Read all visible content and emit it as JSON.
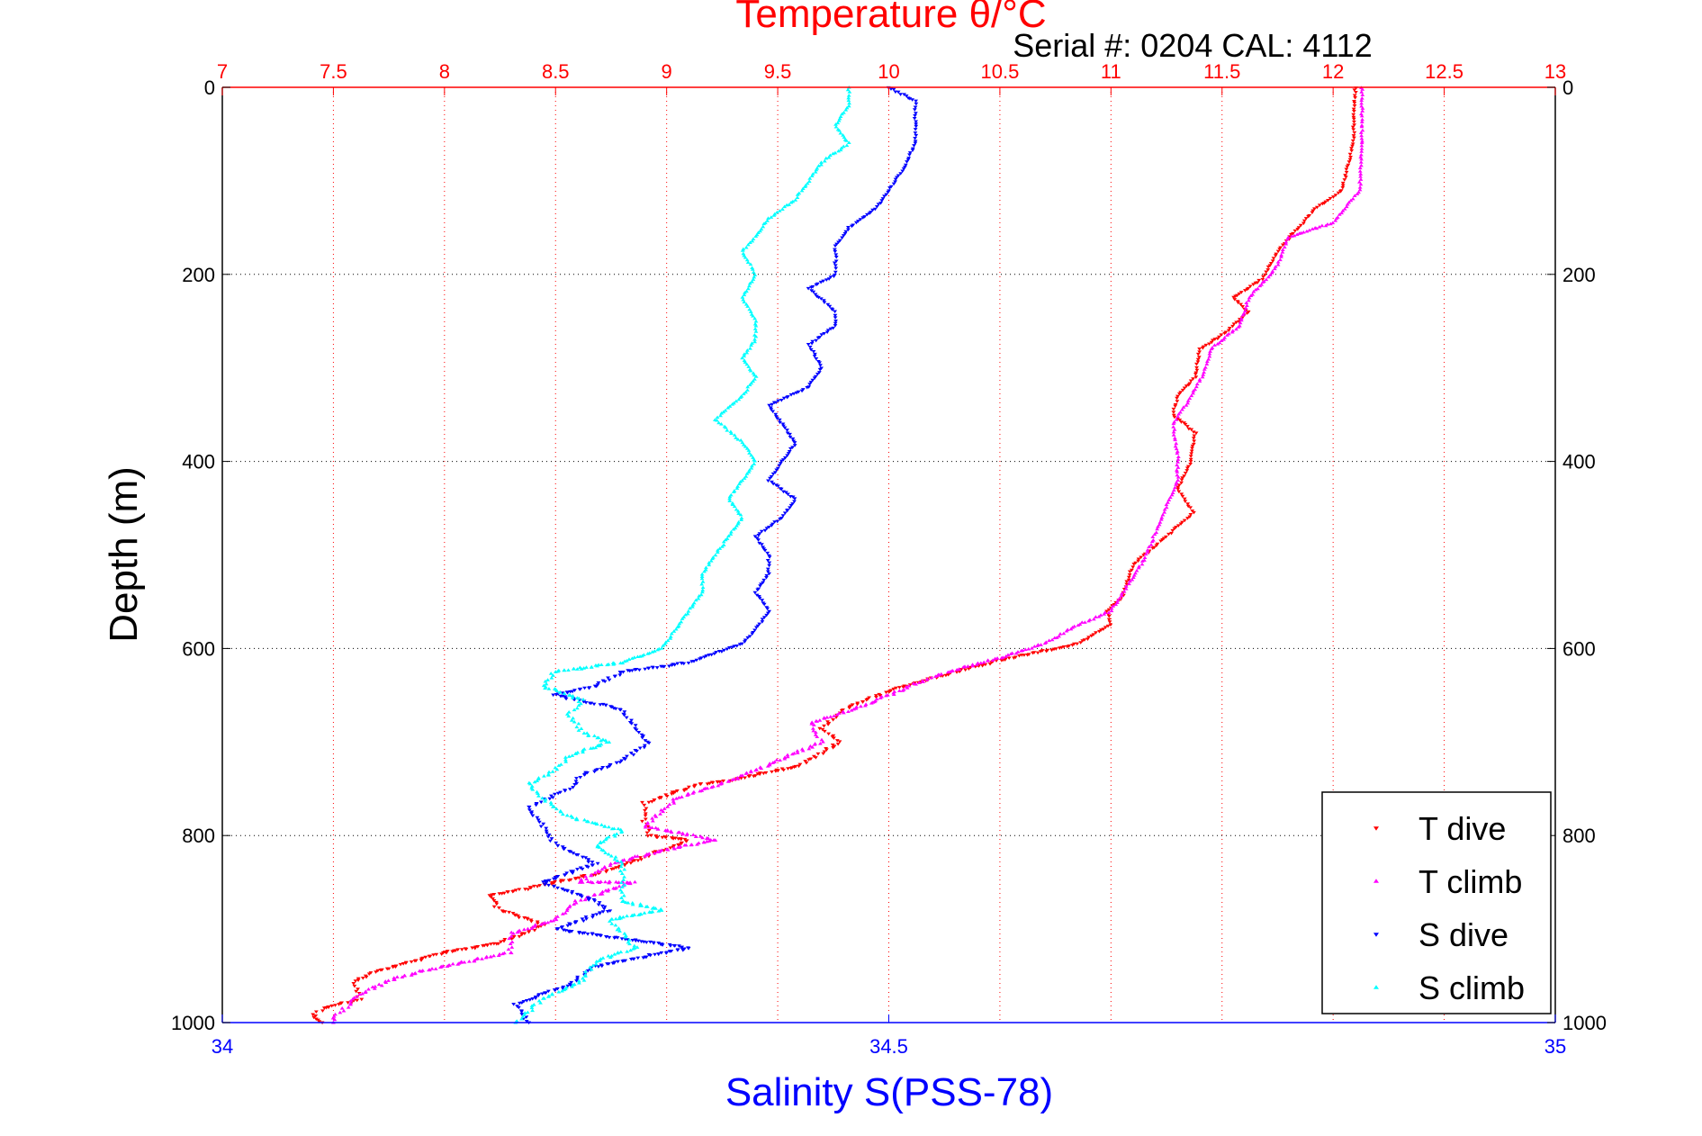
{
  "chart_data": {
    "type": "scatter",
    "title": "Temperature θ/°C",
    "subtitle": "Serial #: 0204  CAL: 4112",
    "xlabel_top": "Temperature θ/°C",
    "xlabel_bottom": "Salinity S(PSS-78)",
    "ylabel": "Depth (m)",
    "x_top": {
      "range": [
        7,
        13
      ],
      "ticks": [
        "7",
        "7.5",
        "8",
        "8.5",
        "9",
        "9.5",
        "10",
        "10.5",
        "11",
        "11.5",
        "12",
        "12.5",
        "13"
      ]
    },
    "x_bottom": {
      "range": [
        34,
        35
      ],
      "ticks": [
        "34",
        "34.5",
        "35"
      ]
    },
    "y": {
      "range": [
        0,
        1000
      ],
      "inverted": true,
      "ticks": [
        "0",
        "200",
        "400",
        "600",
        "800",
        "1000"
      ]
    },
    "grid": true,
    "legend_position": "bottom-right",
    "colors": {
      "T dive": "#ff0000",
      "T climb": "#ff00ff",
      "S dive": "#0000ff",
      "S climb": "#00ffff"
    },
    "series": [
      {
        "name": "T dive",
        "axis": "temperature",
        "marker": "triangle-down",
        "points": [
          [
            12.1,
            0
          ],
          [
            12.09,
            60
          ],
          [
            12.04,
            110
          ],
          [
            11.92,
            130
          ],
          [
            11.75,
            175
          ],
          [
            11.68,
            205
          ],
          [
            11.55,
            225
          ],
          [
            11.62,
            240
          ],
          [
            11.5,
            265
          ],
          [
            11.4,
            280
          ],
          [
            11.38,
            310
          ],
          [
            11.3,
            330
          ],
          [
            11.28,
            350
          ],
          [
            11.38,
            370
          ],
          [
            11.36,
            400
          ],
          [
            11.3,
            430
          ],
          [
            11.37,
            455
          ],
          [
            11.25,
            480
          ],
          [
            11.1,
            510
          ],
          [
            11.05,
            545
          ],
          [
            10.98,
            560
          ],
          [
            11.0,
            575
          ],
          [
            10.85,
            595
          ],
          [
            10.55,
            610
          ],
          [
            10.3,
            625
          ],
          [
            10.0,
            645
          ],
          [
            9.8,
            665
          ],
          [
            9.7,
            685
          ],
          [
            9.78,
            700
          ],
          [
            9.6,
            725
          ],
          [
            9.3,
            740
          ],
          [
            9.15,
            745
          ],
          [
            8.9,
            765
          ],
          [
            8.9,
            785
          ],
          [
            8.92,
            800
          ],
          [
            9.1,
            805
          ],
          [
            8.88,
            825
          ],
          [
            8.7,
            840
          ],
          [
            8.4,
            855
          ],
          [
            8.2,
            865
          ],
          [
            8.25,
            880
          ],
          [
            8.45,
            895
          ],
          [
            8.25,
            915
          ],
          [
            8.0,
            925
          ],
          [
            7.7,
            945
          ],
          [
            7.6,
            955
          ],
          [
            7.62,
            975
          ],
          [
            7.45,
            985
          ],
          [
            7.4,
            995
          ],
          [
            7.45,
            1000
          ]
        ]
      },
      {
        "name": "T climb",
        "axis": "temperature",
        "marker": "triangle-up",
        "points": [
          [
            12.13,
            0
          ],
          [
            12.13,
            60
          ],
          [
            12.12,
            110
          ],
          [
            12.0,
            145
          ],
          [
            11.8,
            160
          ],
          [
            11.75,
            190
          ],
          [
            11.7,
            205
          ],
          [
            11.62,
            225
          ],
          [
            11.58,
            255
          ],
          [
            11.45,
            280
          ],
          [
            11.42,
            305
          ],
          [
            11.35,
            335
          ],
          [
            11.28,
            360
          ],
          [
            11.3,
            395
          ],
          [
            11.3,
            420
          ],
          [
            11.22,
            465
          ],
          [
            11.15,
            505
          ],
          [
            11.0,
            560
          ],
          [
            10.85,
            575
          ],
          [
            10.7,
            595
          ],
          [
            10.5,
            610
          ],
          [
            10.2,
            630
          ],
          [
            9.9,
            660
          ],
          [
            9.65,
            680
          ],
          [
            9.7,
            700
          ],
          [
            9.5,
            720
          ],
          [
            9.3,
            740
          ],
          [
            9.05,
            760
          ],
          [
            8.95,
            780
          ],
          [
            8.9,
            790
          ],
          [
            9.22,
            805
          ],
          [
            9.0,
            815
          ],
          [
            8.75,
            830
          ],
          [
            8.6,
            850
          ],
          [
            8.85,
            850
          ],
          [
            8.6,
            870
          ],
          [
            8.5,
            890
          ],
          [
            8.3,
            905
          ],
          [
            8.3,
            925
          ],
          [
            8.1,
            935
          ],
          [
            7.9,
            945
          ],
          [
            7.75,
            955
          ],
          [
            7.62,
            970
          ],
          [
            7.55,
            985
          ],
          [
            7.5,
            995
          ],
          [
            7.5,
            1000
          ]
        ]
      },
      {
        "name": "S dive",
        "axis": "salinity",
        "marker": "triangle-down",
        "points": [
          [
            34.5,
            0
          ],
          [
            34.52,
            15
          ],
          [
            34.52,
            30
          ],
          [
            34.52,
            60
          ],
          [
            34.51,
            90
          ],
          [
            34.5,
            110
          ],
          [
            34.49,
            130
          ],
          [
            34.47,
            150
          ],
          [
            34.46,
            170
          ],
          [
            34.46,
            200
          ],
          [
            34.44,
            215
          ],
          [
            34.46,
            240
          ],
          [
            34.46,
            255
          ],
          [
            34.44,
            275
          ],
          [
            34.45,
            300
          ],
          [
            34.44,
            320
          ],
          [
            34.41,
            340
          ],
          [
            34.42,
            360
          ],
          [
            34.43,
            380
          ],
          [
            34.42,
            400
          ],
          [
            34.41,
            420
          ],
          [
            34.43,
            440
          ],
          [
            34.42,
            460
          ],
          [
            34.4,
            480
          ],
          [
            34.41,
            500
          ],
          [
            34.41,
            520
          ],
          [
            34.4,
            540
          ],
          [
            34.41,
            560
          ],
          [
            34.4,
            580
          ],
          [
            34.39,
            595
          ],
          [
            34.35,
            615
          ],
          [
            34.3,
            625
          ],
          [
            34.28,
            640
          ],
          [
            34.25,
            650
          ],
          [
            34.3,
            665
          ],
          [
            34.31,
            685
          ],
          [
            34.32,
            700
          ],
          [
            34.3,
            720
          ],
          [
            34.27,
            735
          ],
          [
            34.26,
            750
          ],
          [
            34.23,
            770
          ],
          [
            34.24,
            790
          ],
          [
            34.25,
            810
          ],
          [
            34.28,
            830
          ],
          [
            34.24,
            850
          ],
          [
            34.28,
            870
          ],
          [
            34.29,
            880
          ],
          [
            34.25,
            900
          ],
          [
            34.35,
            920
          ],
          [
            34.28,
            940
          ],
          [
            34.26,
            960
          ],
          [
            34.22,
            980
          ],
          [
            34.23,
            1000
          ]
        ]
      },
      {
        "name": "S climb",
        "axis": "salinity",
        "marker": "triangle-up",
        "points": [
          [
            34.47,
            0
          ],
          [
            34.47,
            20
          ],
          [
            34.46,
            40
          ],
          [
            34.47,
            60
          ],
          [
            34.45,
            80
          ],
          [
            34.44,
            100
          ],
          [
            34.43,
            120
          ],
          [
            34.41,
            140
          ],
          [
            34.4,
            160
          ],
          [
            34.39,
            175
          ],
          [
            34.4,
            200
          ],
          [
            34.39,
            225
          ],
          [
            34.4,
            250
          ],
          [
            34.4,
            270
          ],
          [
            34.39,
            290
          ],
          [
            34.4,
            310
          ],
          [
            34.39,
            330
          ],
          [
            34.37,
            355
          ],
          [
            34.39,
            380
          ],
          [
            34.4,
            400
          ],
          [
            34.39,
            420
          ],
          [
            34.38,
            440
          ],
          [
            34.39,
            460
          ],
          [
            34.38,
            480
          ],
          [
            34.37,
            500
          ],
          [
            34.36,
            520
          ],
          [
            34.36,
            540
          ],
          [
            34.35,
            560
          ],
          [
            34.34,
            580
          ],
          [
            34.33,
            600
          ],
          [
            34.3,
            615
          ],
          [
            34.25,
            625
          ],
          [
            34.24,
            640
          ],
          [
            34.27,
            655
          ],
          [
            34.26,
            670
          ],
          [
            34.27,
            690
          ],
          [
            34.29,
            700
          ],
          [
            34.26,
            715
          ],
          [
            34.25,
            730
          ],
          [
            34.23,
            745
          ],
          [
            34.24,
            760
          ],
          [
            34.26,
            780
          ],
          [
            34.3,
            795
          ],
          [
            34.28,
            810
          ],
          [
            34.3,
            830
          ],
          [
            34.3,
            850
          ],
          [
            34.3,
            870
          ],
          [
            34.33,
            880
          ],
          [
            34.29,
            890
          ],
          [
            34.3,
            905
          ],
          [
            34.31,
            920
          ],
          [
            34.28,
            935
          ],
          [
            34.27,
            955
          ],
          [
            34.24,
            975
          ],
          [
            34.22,
            1000
          ]
        ]
      }
    ]
  }
}
